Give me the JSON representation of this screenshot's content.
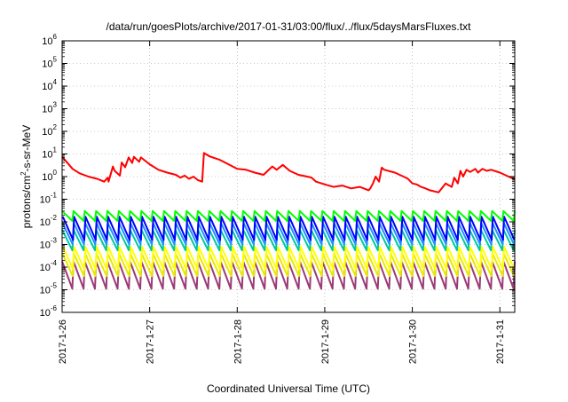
{
  "chart_data": {
    "type": "line",
    "title": "/data/run/goesPlots/archive/2017-01-31/03:00/flux/../flux/5daysMarsFluxes.txt",
    "xlabel": "Coordinated Universal Time (UTC)",
    "ylabel_parts": {
      "base": "protons/cm",
      "sup": "2",
      "tail": "-s-sr-MeV"
    },
    "y_log_scale": true,
    "ylim": [
      1e-06,
      1000000.0
    ],
    "y_ticks": [
      {
        "value": 1e-06,
        "base": "10",
        "exp": "-6"
      },
      {
        "value": 1e-05,
        "base": "10",
        "exp": "-5"
      },
      {
        "value": 0.0001,
        "base": "10",
        "exp": "-4"
      },
      {
        "value": 0.001,
        "base": "10",
        "exp": "-3"
      },
      {
        "value": 0.01,
        "base": "10",
        "exp": "-2"
      },
      {
        "value": 0.1,
        "base": "10",
        "exp": "-1"
      },
      {
        "value": 1,
        "base": "10",
        "exp": "0"
      },
      {
        "value": 10,
        "base": "10",
        "exp": "1"
      },
      {
        "value": 100,
        "base": "10",
        "exp": "2"
      },
      {
        "value": 1000,
        "base": "10",
        "exp": "3"
      },
      {
        "value": 10000,
        "base": "10",
        "exp": "4"
      },
      {
        "value": 100000,
        "base": "10",
        "exp": "5"
      },
      {
        "value": 1000000,
        "base": "10",
        "exp": "6"
      }
    ],
    "x_range_days": [
      0,
      5.17
    ],
    "x_ticks": [
      {
        "value": 0,
        "label": "2017-1-26"
      },
      {
        "value": 1,
        "label": "2017-1-27"
      },
      {
        "value": 2,
        "label": "2017-1-28"
      },
      {
        "value": 3,
        "label": "2017-1-29"
      },
      {
        "value": 4,
        "label": "2017-1-30"
      },
      {
        "value": 5,
        "label": "2017-1-31"
      }
    ],
    "grid": "dotted, major ticks",
    "legend": "none",
    "series": [
      {
        "color": "#ff0000",
        "x": [
          0,
          0.05,
          0.12,
          0.2,
          0.3,
          0.4,
          0.48,
          0.52,
          0.53,
          0.58,
          0.6,
          0.66,
          0.68,
          0.72,
          0.76,
          0.8,
          0.82,
          0.88,
          0.9,
          1.0,
          1.1,
          1.2,
          1.3,
          1.35,
          1.4,
          1.45,
          1.5,
          1.55,
          1.6,
          1.62,
          1.68,
          1.72,
          1.8,
          1.9,
          2.0,
          2.1,
          2.2,
          2.3,
          2.4,
          2.45,
          2.52,
          2.6,
          2.7,
          2.8,
          2.85,
          2.9,
          3.0,
          3.1,
          3.2,
          3.3,
          3.4,
          3.5,
          3.52,
          3.55,
          3.58,
          3.62,
          3.65,
          3.68,
          3.8,
          3.9,
          3.95,
          4.0,
          4.05,
          4.1,
          4.15,
          4.2,
          4.3,
          4.38,
          4.45,
          4.48,
          4.52,
          4.55,
          4.58,
          4.62,
          4.66,
          4.72,
          4.75,
          4.8,
          4.85,
          4.9,
          5.0,
          5.1,
          5.17
        ],
        "values": [
          7.5,
          4.5,
          2.2,
          1.4,
          1.0,
          0.8,
          0.6,
          0.9,
          0.6,
          2.8,
          1.8,
          1.1,
          4.2,
          2.6,
          7.0,
          4.0,
          7.5,
          4.5,
          7.0,
          3.5,
          2.0,
          1.5,
          1.2,
          0.9,
          1.1,
          0.8,
          1.0,
          0.7,
          0.6,
          11.0,
          8.0,
          7.0,
          5.5,
          3.5,
          2.2,
          2.0,
          1.5,
          1.2,
          2.8,
          2.0,
          3.3,
          1.8,
          1.2,
          1.0,
          0.9,
          0.6,
          0.45,
          0.35,
          0.4,
          0.3,
          0.35,
          0.25,
          0.3,
          0.5,
          1.0,
          0.6,
          2.5,
          2.0,
          1.5,
          1.0,
          0.8,
          0.5,
          0.45,
          0.35,
          0.3,
          0.25,
          0.2,
          0.5,
          0.35,
          0.9,
          0.5,
          1.8,
          1.0,
          2.0,
          1.6,
          2.2,
          1.5,
          2.2,
          1.8,
          2.0,
          1.5,
          1.0,
          0.75
        ]
      },
      {
        "color": "#00ff00",
        "sawtooth": {
          "peak": 0.03,
          "trough": 0.011,
          "teeth": 40
        }
      },
      {
        "color": "#0000ff",
        "sawtooth": {
          "peak": 0.017,
          "trough": 0.0016,
          "teeth": 40
        }
      },
      {
        "color": "#1e90ff",
        "sawtooth": {
          "peak": 0.009,
          "trough": 0.001,
          "teeth": 40
        }
      },
      {
        "color": "#00c8a0",
        "sawtooth": {
          "peak": 0.0045,
          "trough": 0.00055,
          "teeth": 40
        }
      },
      {
        "color": "#ffff00",
        "sawtooth": {
          "peak": 0.0008,
          "trough": 8e-05,
          "teeth": 40
        }
      },
      {
        "color": "#e8e800",
        "sawtooth": {
          "peak": 0.0004,
          "trough": 4e-05,
          "teeth": 40
        }
      },
      {
        "color": "#9b3a78",
        "sawtooth": {
          "peak": 0.00018,
          "trough": 1.1e-05,
          "teeth": 40
        }
      }
    ]
  }
}
